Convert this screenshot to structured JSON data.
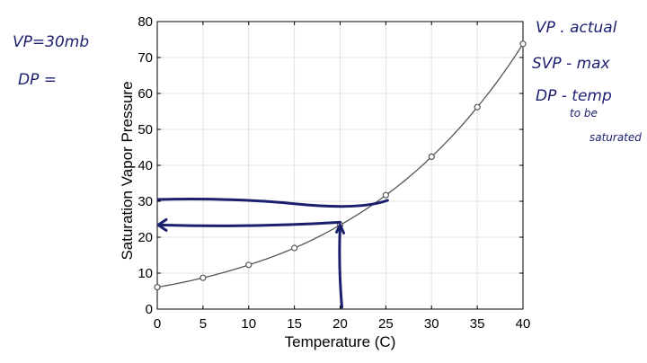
{
  "chart_data": {
    "type": "line",
    "title": "",
    "xlabel": "Temperature (C)",
    "ylabel": "Saturation Vapor Pressure",
    "xlim": [
      0,
      40
    ],
    "ylim": [
      0,
      80
    ],
    "xticks": [
      0,
      5,
      10,
      15,
      20,
      25,
      30,
      35,
      40
    ],
    "yticks": [
      0,
      10,
      20,
      30,
      40,
      50,
      60,
      70,
      80
    ],
    "grid": true,
    "x": [
      0,
      5,
      10,
      15,
      20,
      25,
      30,
      35,
      40
    ],
    "series": [
      {
        "values": [
          6.1,
          8.7,
          12.3,
          17.0,
          23.4,
          31.7,
          42.4,
          56.2,
          73.8
        ]
      }
    ],
    "line_color": "#555555",
    "ink_color": "#1a1f6e",
    "annotations": {
      "horizontal_line_y": 30,
      "arrow_from": [
        20,
        0
      ],
      "arrow_corner": [
        20,
        23.4
      ],
      "arrow_to_y": 23.4
    }
  },
  "handwriting": {
    "left_line1": "VP=30mb",
    "left_line2": "DP =",
    "right_line1": "VP . actual",
    "right_line2": "SVP - max",
    "right_line3": "DP - temp",
    "right_line4": "to be",
    "right_line5": "saturated"
  }
}
